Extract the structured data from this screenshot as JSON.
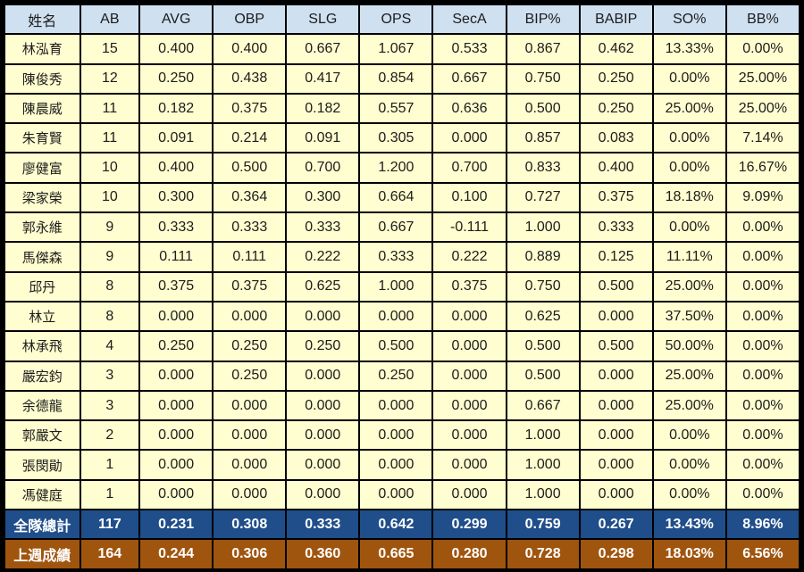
{
  "headers": [
    "姓名",
    "AB",
    "AVG",
    "OBP",
    "SLG",
    "OPS",
    "SecA",
    "BIP%",
    "BABIP",
    "SO%",
    "BB%"
  ],
  "players": [
    [
      "林泓育",
      "15",
      "0.400",
      "0.400",
      "0.667",
      "1.067",
      "0.533",
      "0.867",
      "0.462",
      "13.33%",
      "0.00%"
    ],
    [
      "陳俊秀",
      "12",
      "0.250",
      "0.438",
      "0.417",
      "0.854",
      "0.667",
      "0.750",
      "0.250",
      "0.00%",
      "25.00%"
    ],
    [
      "陳晨威",
      "11",
      "0.182",
      "0.375",
      "0.182",
      "0.557",
      "0.636",
      "0.500",
      "0.250",
      "25.00%",
      "25.00%"
    ],
    [
      "朱育賢",
      "11",
      "0.091",
      "0.214",
      "0.091",
      "0.305",
      "0.000",
      "0.857",
      "0.083",
      "0.00%",
      "7.14%"
    ],
    [
      "廖健富",
      "10",
      "0.400",
      "0.500",
      "0.700",
      "1.200",
      "0.700",
      "0.833",
      "0.400",
      "0.00%",
      "16.67%"
    ],
    [
      "梁家榮",
      "10",
      "0.300",
      "0.364",
      "0.300",
      "0.664",
      "0.100",
      "0.727",
      "0.375",
      "18.18%",
      "9.09%"
    ],
    [
      "郭永維",
      "9",
      "0.333",
      "0.333",
      "0.333",
      "0.667",
      "-0.111",
      "1.000",
      "0.333",
      "0.00%",
      "0.00%"
    ],
    [
      "馬傑森",
      "9",
      "0.111",
      "0.111",
      "0.222",
      "0.333",
      "0.222",
      "0.889",
      "0.125",
      "11.11%",
      "0.00%"
    ],
    [
      "邱丹",
      "8",
      "0.375",
      "0.375",
      "0.625",
      "1.000",
      "0.375",
      "0.750",
      "0.500",
      "25.00%",
      "0.00%"
    ],
    [
      "林立",
      "8",
      "0.000",
      "0.000",
      "0.000",
      "0.000",
      "0.000",
      "0.625",
      "0.000",
      "37.50%",
      "0.00%"
    ],
    [
      "林承飛",
      "4",
      "0.250",
      "0.250",
      "0.250",
      "0.500",
      "0.000",
      "0.500",
      "0.500",
      "50.00%",
      "0.00%"
    ],
    [
      "嚴宏鈞",
      "3",
      "0.000",
      "0.250",
      "0.000",
      "0.250",
      "0.000",
      "0.500",
      "0.000",
      "25.00%",
      "0.00%"
    ],
    [
      "余德龍",
      "3",
      "0.000",
      "0.000",
      "0.000",
      "0.000",
      "0.000",
      "0.667",
      "0.000",
      "25.00%",
      "0.00%"
    ],
    [
      "郭嚴文",
      "2",
      "0.000",
      "0.000",
      "0.000",
      "0.000",
      "0.000",
      "1.000",
      "0.000",
      "0.00%",
      "0.00%"
    ],
    [
      "張閔勛",
      "1",
      "0.000",
      "0.000",
      "0.000",
      "0.000",
      "0.000",
      "1.000",
      "0.000",
      "0.00%",
      "0.00%"
    ],
    [
      "馮健庭",
      "1",
      "0.000",
      "0.000",
      "0.000",
      "0.000",
      "0.000",
      "1.000",
      "0.000",
      "0.00%",
      "0.00%"
    ]
  ],
  "team_total": [
    "全隊總計",
    "117",
    "0.231",
    "0.308",
    "0.333",
    "0.642",
    "0.299",
    "0.759",
    "0.267",
    "13.43%",
    "8.96%"
  ],
  "last_week": [
    "上週成績",
    "164",
    "0.244",
    "0.306",
    "0.360",
    "0.665",
    "0.280",
    "0.728",
    "0.298",
    "18.03%",
    "6.56%"
  ],
  "colors": {
    "header_bg": "#cfe0f1",
    "row_bg": "#fffed0",
    "team_total_bg": "#1f4e8a",
    "last_week_bg": "#a0550f",
    "border": "#000000"
  }
}
